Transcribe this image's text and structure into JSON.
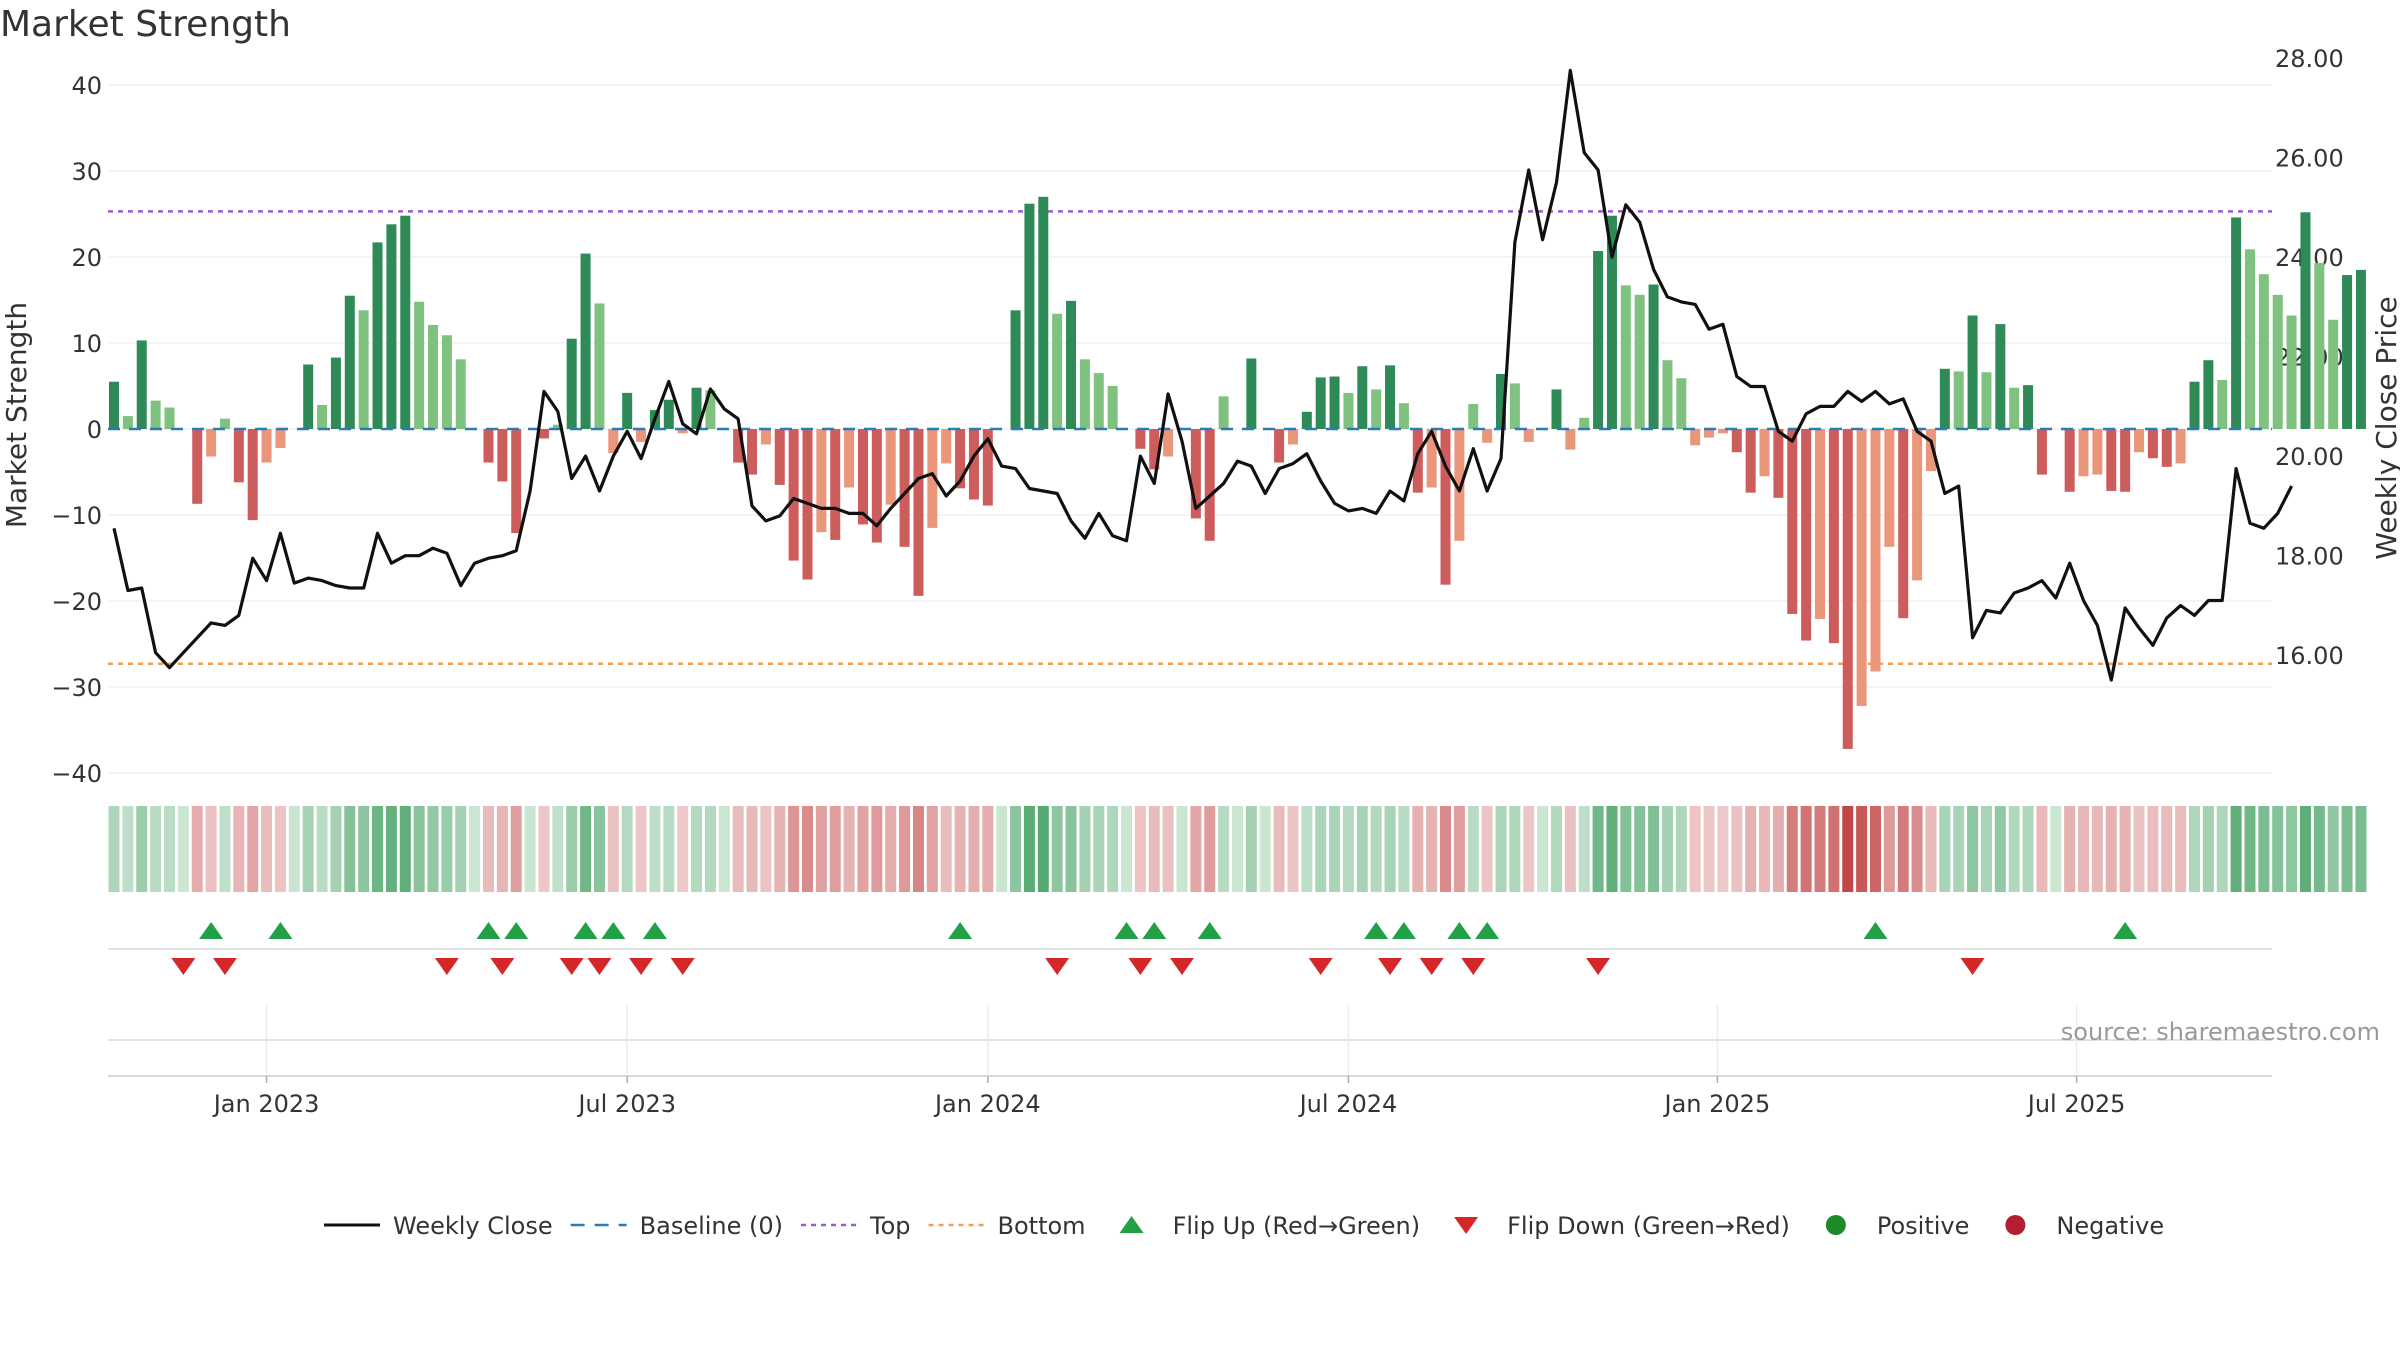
{
  "chart_data": {
    "type": "bar",
    "title": "Market Strength",
    "ylabel_left": "Market Strength",
    "ylabel_right": "Weekly Close Price",
    "source": "source: sharemaestro.com",
    "x_start": "2022-10-17",
    "x_ticks": [
      {
        "label": "Jan 2023",
        "week": 11
      },
      {
        "label": "Jul 2023",
        "week": 37
      },
      {
        "label": "Jan 2024",
        "week": 63
      },
      {
        "label": "Jul 2024",
        "week": 89
      },
      {
        "label": "Jan 2025",
        "week": 115.6
      },
      {
        "label": "Jul 2025",
        "week": 141.5
      }
    ],
    "strength_ylim": [
      -42,
      41
    ],
    "strength_ticks": [
      40,
      30,
      20,
      10,
      0,
      -10,
      -20,
      -30,
      -40
    ],
    "price_ylim": [
      14.65,
      29.3
    ],
    "price_ticks": [
      "28.00",
      "26.00",
      "24.00",
      "22.00",
      "20.00",
      "18.00",
      "16.00"
    ],
    "top_line": 25.3,
    "bottom_line": -27.3,
    "strength": [
      5.5,
      1.5,
      10.3,
      3.3,
      2.5,
      0,
      -8.7,
      -3.2,
      1.2,
      -6.2,
      -10.6,
      -3.9,
      -2.2,
      0,
      7.5,
      2.8,
      8.3,
      15.5,
      13.8,
      21.7,
      23.8,
      24.8,
      14.8,
      12.1,
      10.9,
      8.1,
      0,
      -3.9,
      -6.1,
      -12.1,
      0,
      -1.1,
      0.5,
      10.5,
      20.4,
      14.6,
      -2.8,
      4.2,
      -1.5,
      2.2,
      3.4,
      -0.5,
      4.8,
      4.5,
      0,
      -3.9,
      -5.3,
      -1.8,
      -6.5,
      -15.3,
      -17.5,
      -12,
      -12.9,
      -6.8,
      -11.1,
      -13.2,
      -8.8,
      -13.7,
      -19.4,
      -11.5,
      -4,
      -6.9,
      -8.2,
      -8.9,
      0,
      13.8,
      26.2,
      27,
      13.4,
      14.9,
      8.1,
      6.5,
      5,
      0,
      -2.3,
      -4.7,
      -3.2,
      0,
      -10.4,
      -13,
      3.8,
      0,
      8.2,
      0,
      -3.9,
      -1.8,
      2,
      6,
      6.1,
      4.2,
      7.3,
      4.6,
      7.4,
      3,
      -7.4,
      -6.8,
      -18.1,
      -13,
      2.9,
      -1.6,
      6.4,
      5.3,
      -1.5,
      0,
      4.6,
      -2.4,
      1.3,
      20.7,
      24.8,
      16.7,
      15.6,
      16.8,
      8,
      5.9,
      -1.9,
      -1,
      -0.5,
      -2.7,
      -7.4,
      -5.5,
      -8,
      -21.5,
      -24.6,
      -22.1,
      -24.9,
      -37.2,
      -32.2,
      -28.2,
      -13.7,
      -22,
      -17.6,
      -4.9,
      7,
      6.7,
      13.2,
      6.6,
      12.2,
      4.8,
      5.1,
      -5.3,
      0,
      -7.3,
      -5.5,
      -5.3,
      -7.2,
      -7.3,
      -2.7,
      -3.4,
      -4.4,
      -4,
      5.5,
      8,
      5.7,
      24.6,
      20.9,
      18,
      15.6,
      13.2,
      25.2,
      19.3,
      12.7,
      17.9,
      18.5
    ],
    "price": [
      18.55,
      17.3,
      17.35,
      16.05,
      15.75,
      16.05,
      16.35,
      16.65,
      16.6,
      16.8,
      17.95,
      17.5,
      18.45,
      17.45,
      17.55,
      17.5,
      17.4,
      17.35,
      17.35,
      18.45,
      17.85,
      18,
      18,
      18.15,
      18.05,
      17.4,
      17.85,
      17.95,
      18,
      18.1,
      19.3,
      21.3,
      20.9,
      19.55,
      20,
      19.3,
      20,
      20.5,
      19.95,
      20.75,
      21.5,
      20.65,
      20.45,
      21.35,
      20.95,
      20.75,
      19,
      18.7,
      18.8,
      19.15,
      19.05,
      18.95,
      18.95,
      18.85,
      18.85,
      18.6,
      18.95,
      19.25,
      19.55,
      19.65,
      19.2,
      19.5,
      20,
      20.35,
      19.8,
      19.75,
      19.35,
      19.3,
      19.25,
      18.7,
      18.35,
      18.85,
      18.4,
      18.3,
      20,
      19.45,
      21.25,
      20.3,
      18.95,
      19.2,
      19.45,
      19.9,
      19.8,
      19.25,
      19.75,
      19.85,
      20.05,
      19.5,
      19.05,
      18.9,
      18.95,
      18.85,
      19.3,
      19.1,
      20.05,
      20.5,
      19.8,
      19.3,
      20.15,
      19.3,
      19.95,
      24.3,
      25.75,
      24.35,
      25.5,
      27.75,
      26.1,
      25.75,
      24,
      25.05,
      24.7,
      23.75,
      23.2,
      23.1,
      23.05,
      22.55,
      22.65,
      21.6,
      21.4,
      21.4,
      20.5,
      20.3,
      20.85,
      21,
      21,
      21.3,
      21.1,
      21.3,
      21.05,
      21.15,
      20.5,
      20.3,
      19.25,
      19.4,
      16.35,
      16.9,
      16.85,
      17.25,
      17.35,
      17.5,
      17.15,
      17.85,
      17.1,
      16.6,
      15.5,
      16.95,
      16.55,
      16.2,
      16.75,
      17,
      16.8,
      17.1,
      17.1,
      19.75,
      18.65,
      18.55,
      18.85,
      19.4
    ],
    "flip_up_weeks": [
      7,
      12,
      27,
      29,
      34,
      36,
      39,
      61,
      73,
      75,
      79,
      91,
      93,
      97,
      99,
      127,
      145
    ],
    "flip_down_weeks": [
      5,
      8,
      24,
      28,
      33,
      35,
      38,
      41,
      68,
      74,
      77,
      87,
      92,
      95,
      98,
      107,
      134
    ],
    "legend": [
      {
        "label": "Weekly Close",
        "kind": "line",
        "color": "#111111"
      },
      {
        "label": "Baseline (0)",
        "kind": "dash",
        "color": "#2c7bb6"
      },
      {
        "label": "Top",
        "kind": "dot",
        "color": "#9b59d0"
      },
      {
        "label": "Bottom",
        "kind": "dot",
        "color": "#f0a050"
      },
      {
        "label": "Flip Up (Red→Green)",
        "kind": "tri-up",
        "color": "#22a046"
      },
      {
        "label": "Flip Down (Green→Red)",
        "kind": "tri-down",
        "color": "#d62728"
      },
      {
        "label": "Positive",
        "kind": "circle",
        "color": "#1f8a2a"
      },
      {
        "label": "Negative",
        "kind": "circle",
        "color": "#b22030"
      }
    ],
    "colors": {
      "pos_strong": "#2e8b57",
      "pos_weak": "#7fc17f",
      "neg_strong": "#cd5c5c",
      "neg_weak": "#e9967a",
      "price_line": "#111111",
      "baseline": "#2c7bb6",
      "top": "#9b59d0",
      "bottom": "#f0a050",
      "flip_up": "#22a046",
      "flip_down": "#d62728",
      "grid": "#e8e8e8"
    }
  }
}
